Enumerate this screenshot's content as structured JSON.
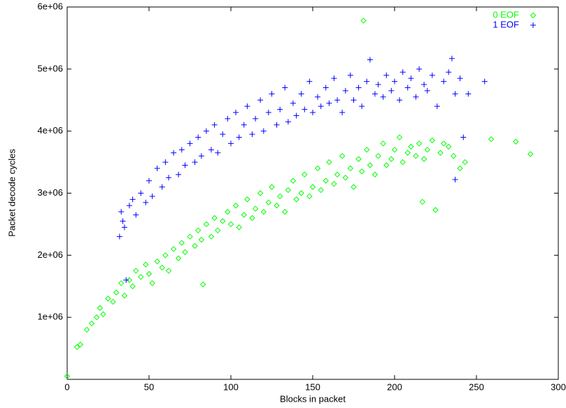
{
  "chart_data": {
    "type": "scatter",
    "xlabel": "Blocks in packet",
    "ylabel": "Packet decode cycles",
    "xlim": [
      0,
      300
    ],
    "xticks": [
      0,
      50,
      100,
      150,
      200,
      250,
      300
    ],
    "ylim": [
      0,
      6000000
    ],
    "yticks": [
      {
        "value": 1000000,
        "label": "1e+06"
      },
      {
        "value": 2000000,
        "label": "2e+06"
      },
      {
        "value": 3000000,
        "label": "3e+06"
      },
      {
        "value": 4000000,
        "label": "4e+06"
      },
      {
        "value": 5000000,
        "label": "5e+06"
      },
      {
        "value": 6000000,
        "label": "6e+06"
      }
    ],
    "grid": false,
    "legend": "top-right",
    "series": [
      {
        "name": "0 EOF",
        "color": "#00ff00",
        "marker": "diamond",
        "x": [
          0,
          6,
          8,
          12,
          15,
          18,
          20,
          22,
          25,
          28,
          30,
          33,
          35,
          38,
          40,
          42,
          45,
          48,
          50,
          52,
          55,
          58,
          60,
          62,
          65,
          68,
          70,
          72,
          75,
          78,
          80,
          82,
          83,
          85,
          88,
          90,
          92,
          95,
          98,
          100,
          103,
          105,
          108,
          110,
          113,
          115,
          118,
          120,
          123,
          125,
          128,
          130,
          133,
          135,
          138,
          140,
          143,
          145,
          148,
          150,
          153,
          155,
          158,
          160,
          163,
          165,
          168,
          170,
          173,
          175,
          178,
          180,
          181,
          183,
          185,
          188,
          190,
          193,
          195,
          198,
          200,
          203,
          205,
          208,
          210,
          213,
          215,
          217,
          218,
          220,
          223,
          225,
          228,
          230,
          233,
          236,
          240,
          243,
          259,
          274,
          283
        ],
        "values": [
          50000,
          520000,
          560000,
          800000,
          900000,
          1000000,
          1150000,
          1050000,
          1300000,
          1250000,
          1400000,
          1550000,
          1350000,
          1600000,
          1500000,
          1750000,
          1650000,
          1850000,
          1700000,
          1550000,
          1900000,
          1800000,
          2000000,
          1750000,
          2100000,
          1950000,
          2200000,
          2050000,
          2300000,
          2150000,
          2400000,
          2250000,
          1530000,
          2500000,
          2300000,
          2600000,
          2400000,
          2550000,
          2700000,
          2500000,
          2800000,
          2450000,
          2650000,
          2900000,
          2600000,
          2750000,
          3000000,
          2700000,
          2850000,
          3100000,
          2800000,
          2950000,
          2700000,
          3050000,
          3200000,
          2900000,
          3000000,
          3300000,
          2950000,
          3100000,
          3400000,
          3050000,
          3200000,
          3500000,
          3150000,
          3300000,
          3600000,
          3250000,
          3400000,
          3100000,
          3550000,
          3350000,
          5780000,
          3700000,
          3450000,
          3300000,
          3600000,
          3800000,
          3450000,
          3550000,
          3700000,
          3900000,
          3500000,
          3650000,
          3750000,
          3600000,
          3800000,
          2860000,
          3550000,
          3700000,
          3850000,
          2730000,
          3650000,
          3800000,
          3750000,
          3600000,
          3400000,
          3500000,
          3870000,
          3830000,
          3630000
        ]
      },
      {
        "name": "1 EOF",
        "color": "#0000ff",
        "marker": "plus",
        "x": [
          32,
          33,
          34,
          35,
          36,
          38,
          40,
          42,
          45,
          48,
          50,
          52,
          55,
          58,
          60,
          62,
          65,
          68,
          70,
          72,
          75,
          78,
          80,
          82,
          85,
          88,
          90,
          92,
          95,
          98,
          100,
          103,
          105,
          108,
          110,
          113,
          115,
          118,
          120,
          123,
          125,
          128,
          130,
          133,
          135,
          138,
          140,
          143,
          145,
          148,
          150,
          153,
          155,
          158,
          160,
          163,
          165,
          168,
          170,
          173,
          175,
          178,
          180,
          183,
          185,
          188,
          190,
          193,
          195,
          198,
          200,
          203,
          205,
          208,
          210,
          213,
          215,
          218,
          220,
          223,
          226,
          230,
          233,
          235,
          237,
          237,
          240,
          242,
          245,
          255
        ],
        "values": [
          2300000,
          2700000,
          2550000,
          2450000,
          1600000,
          2800000,
          2900000,
          2650000,
          3000000,
          2850000,
          3200000,
          2950000,
          3400000,
          3100000,
          3500000,
          3250000,
          3650000,
          3300000,
          3700000,
          3450000,
          3800000,
          3500000,
          3900000,
          3600000,
          4000000,
          3700000,
          4100000,
          3650000,
          3950000,
          4200000,
          3800000,
          4300000,
          3900000,
          4100000,
          4400000,
          3950000,
          4200000,
          4500000,
          4000000,
          4300000,
          4600000,
          4100000,
          4350000,
          4700000,
          4150000,
          4450000,
          4250000,
          4600000,
          4350000,
          4800000,
          4300000,
          4550000,
          4400000,
          4700000,
          4450000,
          4850000,
          4500000,
          4300000,
          4650000,
          4900000,
          4500000,
          4700000,
          4400000,
          4800000,
          5150000,
          4600000,
          4750000,
          4550000,
          4900000,
          4650000,
          4800000,
          4500000,
          4950000,
          4700000,
          4850000,
          4550000,
          5000000,
          4750000,
          4650000,
          4900000,
          4400000,
          4800000,
          4950000,
          5170000,
          4600000,
          3220000,
          4850000,
          3900000,
          4600000,
          4800000
        ]
      }
    ]
  }
}
